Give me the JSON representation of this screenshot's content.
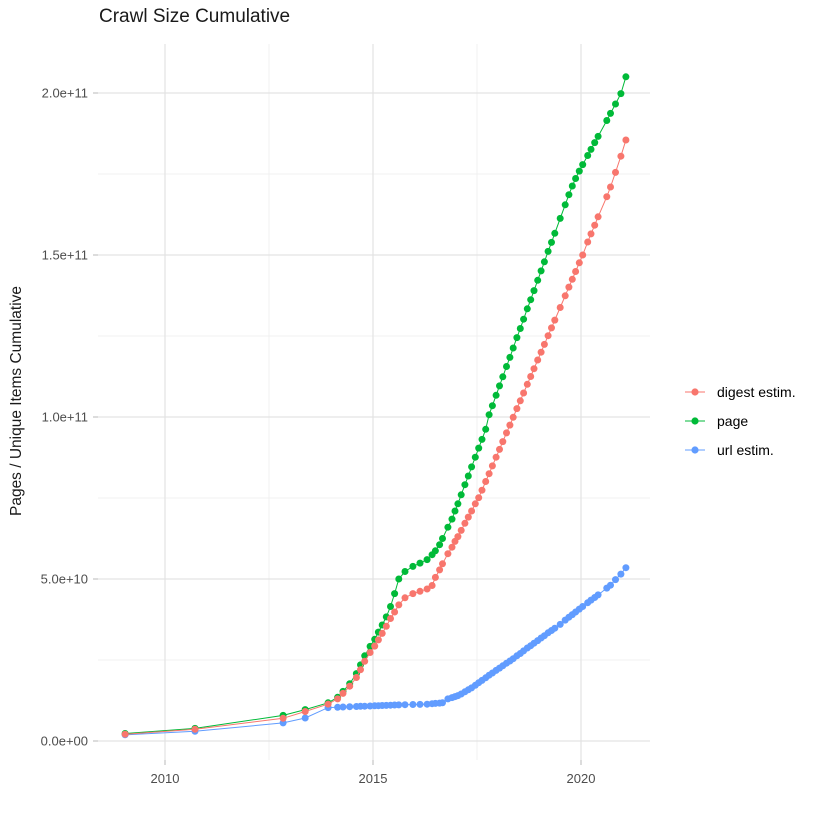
{
  "title": "Crawl Size Cumulative",
  "y_axis": {
    "title": "Pages / Unique Items Cumulative",
    "ticks": [
      {
        "label": "0.0e+00",
        "value_e9": 0
      },
      {
        "label": "5.0e+10",
        "value_e9": 50
      },
      {
        "label": "1.0e+11",
        "value_e9": 100
      },
      {
        "label": "1.5e+11",
        "value_e9": 150
      },
      {
        "label": "2.0e+11",
        "value_e9": 200
      }
    ],
    "minor_ticks_e9": [
      25,
      75,
      125,
      175
    ]
  },
  "x_axis": {
    "ticks": [
      {
        "label": "2010",
        "year": 2010
      },
      {
        "label": "2015",
        "year": 2015
      },
      {
        "label": "2020",
        "year": 2020
      }
    ],
    "minor_ticks_year": [
      2012.5,
      2017.5
    ]
  },
  "legend": {
    "items": [
      {
        "label": "digest estim.",
        "color": "#F8766D"
      },
      {
        "label": "page",
        "color": "#00BA38"
      },
      {
        "label": "url estim.",
        "color": "#619CFF"
      }
    ]
  },
  "colors": {
    "digest": "#F8766D",
    "page": "#00BA38",
    "url": "#619CFF",
    "grid_major": "#E3E3E3",
    "grid_minor": "#F0F0F0",
    "axis_text": "#4D4D4D",
    "tick_mark": "#B8B8B8"
  },
  "chart_data": {
    "type": "scatter",
    "title": "Crawl Size Cumulative",
    "xlabel": "",
    "ylabel": "Pages / Unique Items Cumulative",
    "x_unit": "year (decimal)",
    "y_unit": "count; values stored in units of 1e9 (value_e9 * 1e9 = plotted value)",
    "xlim": [
      2008.4,
      2021.7
    ],
    "ylim_e9": [
      -8,
      215
    ],
    "grid": true,
    "legend_position": "right",
    "x": [
      2009.04,
      2010.72,
      2012.84,
      2013.37,
      2013.92,
      2014.15,
      2014.28,
      2014.44,
      2014.6,
      2014.7,
      2014.8,
      2014.93,
      2015.04,
      2015.13,
      2015.22,
      2015.32,
      2015.42,
      2015.52,
      2015.62,
      2015.77,
      2015.96,
      2016.13,
      2016.3,
      2016.42,
      2016.5,
      2016.6,
      2016.67,
      2016.8,
      2016.9,
      2016.97,
      2017.04,
      2017.12,
      2017.21,
      2017.29,
      2017.37,
      2017.46,
      2017.54,
      2017.62,
      2017.71,
      2017.79,
      2017.87,
      2017.96,
      2018.04,
      2018.12,
      2018.21,
      2018.29,
      2018.37,
      2018.46,
      2018.54,
      2018.62,
      2018.71,
      2018.79,
      2018.87,
      2018.96,
      2019.04,
      2019.12,
      2019.21,
      2019.29,
      2019.37,
      2019.5,
      2019.62,
      2019.71,
      2019.79,
      2019.87,
      2019.96,
      2020.04,
      2020.16,
      2020.24,
      2020.33,
      2020.41,
      2020.62,
      2020.71,
      2020.83,
      2020.96,
      2021.08
    ],
    "series": [
      {
        "name": "url estim.",
        "color": "#619CFF",
        "values_e9": [
          1.9,
          3.0,
          5.6,
          7.1,
          10.3,
          10.4,
          10.5,
          10.6,
          10.65,
          10.7,
          10.75,
          10.8,
          10.85,
          10.9,
          10.95,
          11.0,
          11.05,
          11.1,
          11.15,
          11.2,
          11.25,
          11.3,
          11.35,
          11.5,
          11.6,
          11.7,
          11.8,
          13.0,
          13.4,
          13.7,
          14.0,
          14.5,
          15.2,
          15.8,
          16.4,
          17.2,
          18.0,
          18.7,
          19.5,
          20.3,
          21.0,
          21.8,
          22.5,
          23.2,
          24.0,
          24.7,
          25.4,
          26.3,
          27.0,
          27.8,
          28.7,
          29.4,
          30.2,
          31.0,
          31.8,
          32.5,
          33.4,
          34.1,
          34.8,
          36.0,
          37.3,
          38.2,
          39.0,
          39.8,
          40.7,
          41.5,
          42.7,
          43.5,
          44.3,
          45.1,
          47.2,
          48.1,
          49.8,
          51.5,
          53.5
        ]
      },
      {
        "name": "page",
        "color": "#00BA38",
        "values_e9": [
          2.3,
          3.9,
          7.9,
          9.7,
          11.8,
          13.5,
          15.3,
          17.7,
          20.8,
          23.5,
          26.3,
          29.2,
          31.4,
          33.6,
          35.8,
          38.3,
          41.5,
          45.5,
          50.0,
          52.3,
          53.9,
          54.9,
          56.0,
          57.5,
          58.7,
          60.6,
          62.5,
          66.0,
          68.5,
          71.0,
          73.2,
          76.0,
          79.1,
          81.8,
          84.6,
          87.6,
          90.4,
          93.1,
          96.2,
          100.7,
          103.5,
          106.7,
          109.6,
          112.4,
          115.6,
          118.4,
          121.3,
          124.5,
          127.3,
          130.2,
          133.4,
          136.2,
          139.0,
          142.2,
          145.1,
          147.9,
          151.1,
          153.9,
          156.7,
          161.3,
          165.5,
          168.6,
          171.3,
          173.6,
          175.9,
          177.9,
          180.7,
          182.6,
          184.7,
          186.6,
          191.5,
          193.7,
          196.6,
          199.8,
          205.0
        ]
      },
      {
        "name": "digest estim.",
        "color": "#F8766D",
        "values_e9": [
          2.1,
          3.6,
          7.0,
          9.1,
          11.4,
          13.0,
          14.7,
          16.9,
          19.6,
          22.0,
          24.6,
          27.3,
          29.3,
          31.2,
          33.2,
          35.4,
          37.8,
          39.8,
          42.0,
          44.2,
          45.5,
          46.2,
          46.9,
          48.0,
          50.5,
          52.8,
          54.7,
          57.8,
          59.8,
          61.6,
          63.1,
          65.0,
          67.2,
          69.1,
          71.0,
          73.2,
          75.1,
          77.4,
          80.1,
          82.5,
          84.9,
          87.6,
          90.0,
          92.4,
          95.1,
          97.5,
          99.9,
          102.6,
          105.0,
          107.4,
          110.1,
          112.5,
          114.9,
          117.6,
          120.0,
          122.4,
          125.1,
          127.5,
          129.9,
          133.8,
          137.4,
          140.1,
          142.5,
          144.9,
          147.6,
          150.0,
          154.0,
          156.5,
          159.2,
          161.8,
          168.0,
          171.0,
          175.5,
          180.5,
          185.5
        ]
      }
    ]
  }
}
